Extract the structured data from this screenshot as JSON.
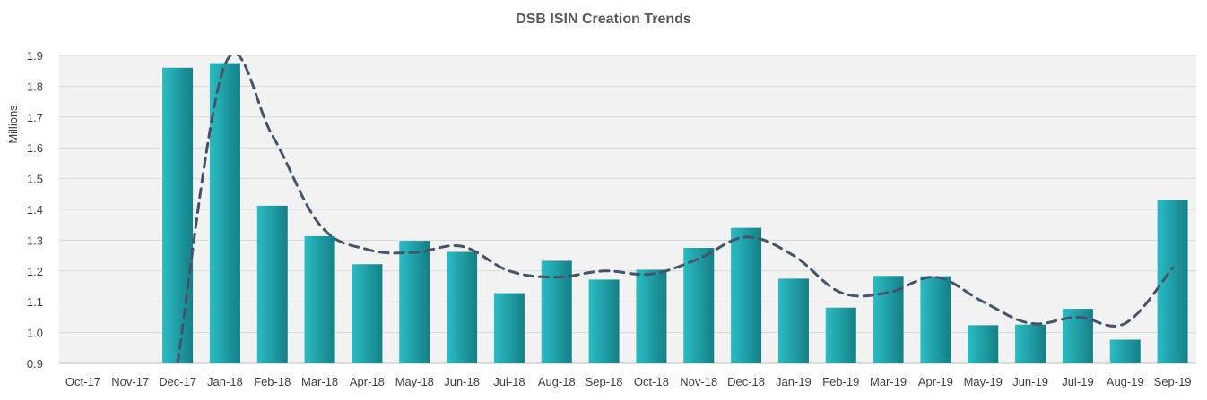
{
  "chart_data": {
    "type": "bar",
    "title": "DSB ISIN Creation Trends",
    "ylabel": "Millions",
    "xlabel": "",
    "ylim": [
      0.9,
      1.9
    ],
    "yticks": [
      "0.9",
      "1.0",
      "1.1",
      "1.2",
      "1.3",
      "1.4",
      "1.5",
      "1.6",
      "1.7",
      "1.8",
      "1.9"
    ],
    "categories": [
      "Oct-17",
      "Nov-17",
      "Dec-17",
      "Jan-18",
      "Feb-18",
      "Mar-18",
      "Apr-18",
      "May-18",
      "Jun-18",
      "Jul-18",
      "Aug-18",
      "Sep-18",
      "Oct-18",
      "Nov-18",
      "Dec-18",
      "Jan-19",
      "Feb-19",
      "Mar-19",
      "Apr-19",
      "May-19",
      "Jun-19",
      "Jul-19",
      "Aug-19",
      "Sep-19"
    ],
    "series": [
      {
        "kind": "bar",
        "values": [
          null,
          null,
          1.86,
          1.875,
          1.412,
          1.313,
          1.222,
          1.298,
          1.262,
          1.128,
          1.233,
          1.172,
          1.204,
          1.275,
          1.34,
          1.175,
          1.081,
          1.184,
          1.183,
          1.024,
          1.026,
          1.077,
          0.977,
          1.43
        ],
        "color": "#1fa7ae"
      },
      {
        "kind": "line",
        "style": "dashed",
        "values": [
          null,
          null,
          0.9,
          1.87,
          1.64,
          1.35,
          1.27,
          1.26,
          1.28,
          1.2,
          1.18,
          1.2,
          1.19,
          1.24,
          1.31,
          1.25,
          1.13,
          1.13,
          1.18,
          1.1,
          1.03,
          1.05,
          1.03,
          1.21
        ],
        "color": "#44546a"
      }
    ],
    "grid": true,
    "legend": "none",
    "colors": {
      "plot_background": "#f2f2f2",
      "gridline": "#d9d9d9",
      "bar_light": "#2bbcc4",
      "bar_dark": "#157f86",
      "trend_line": "#44546a"
    }
  }
}
